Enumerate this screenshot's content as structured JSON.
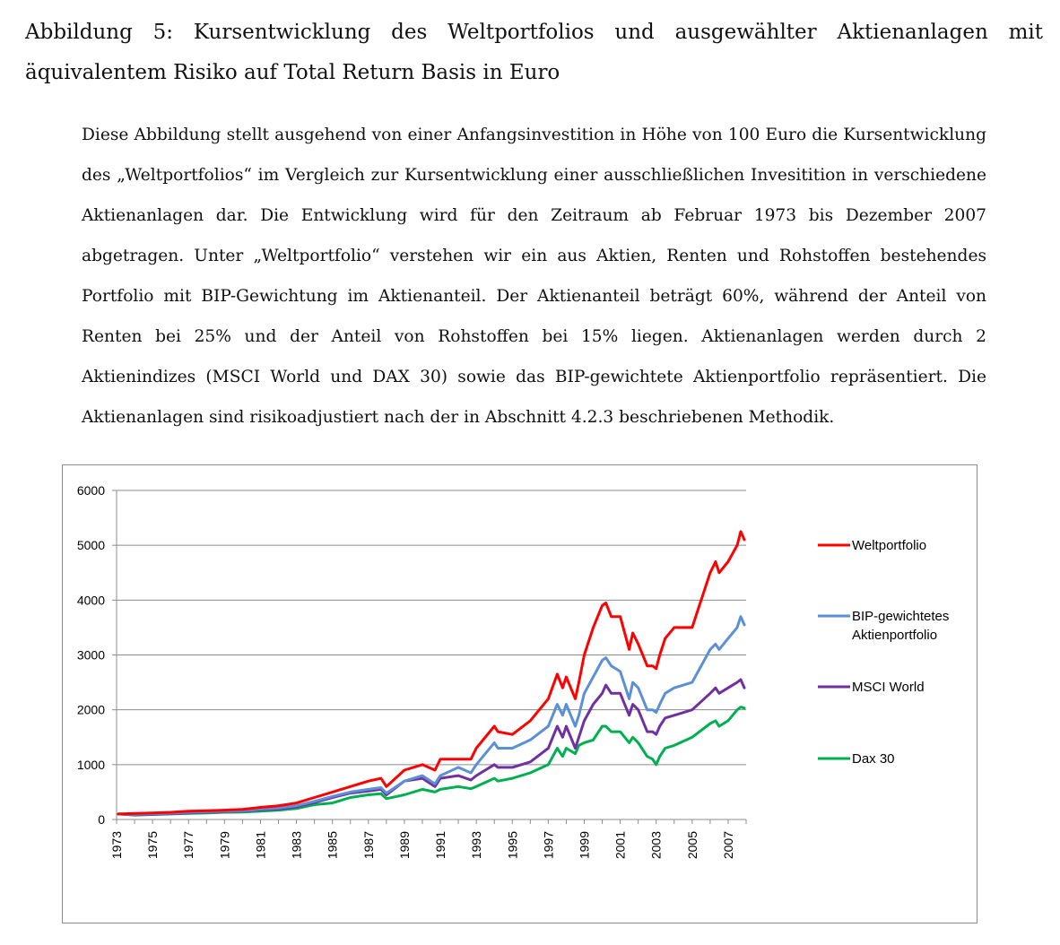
{
  "figure": {
    "caption": "Abbildung 5: Kursentwicklung des Weltportfolios und ausgewählter Aktienanlagen mit äquivalentem Risiko auf Total Return Basis in Euro",
    "description": "Diese Abbildung stellt ausgehend von einer Anfangsinvestition in Höhe von 100 Euro die Kursentwicklung des „Weltportfolios“ im Vergleich zur Kursentwicklung einer ausschließlichen Invesitition in verschiedene Aktienanlagen dar. Die Entwicklung wird für den Zeitraum ab Februar 1973 bis Dezember 2007 abgetragen. Unter „Weltportfolio“ verstehen wir ein aus Aktien, Renten und Rohstoffen bestehendes Portfolio mit BIP-Gewichtung im Aktienanteil. Der Aktienanteil beträgt 60%, während der Anteil von Renten bei 25% und der Anteil von Rohstoffen bei 15% liegen. Aktienanlagen werden durch 2 Aktienindizes (MSCI World und DAX 30) sowie das BIP-gewichtete Aktienportfolio repräsentiert. Die Aktienanlagen sind risikoadjustiert nach der in Abschnitt 4.2.3 beschriebenen Methodik."
  },
  "chart_data": {
    "type": "line",
    "title": "",
    "xlabel": "",
    "ylabel": "",
    "xlim": [
      1973.0,
      2008.0
    ],
    "ylim": [
      0,
      6000
    ],
    "yticks": [
      0,
      1000,
      2000,
      3000,
      4000,
      5000,
      6000
    ],
    "ytick_labels": [
      "0",
      "1000",
      "2000",
      "3000",
      "4000",
      "5000",
      "6000"
    ],
    "xticks": [
      1973,
      1975,
      1977,
      1979,
      1981,
      1983,
      1985,
      1987,
      1989,
      1991,
      1993,
      1995,
      1997,
      1999,
      2001,
      2003,
      2005,
      2007
    ],
    "xtick_labels": [
      "1973",
      "1975",
      "1977",
      "1979",
      "1981",
      "1983",
      "1985",
      "1987",
      "1989",
      "1991",
      "1993",
      "1995",
      "1997",
      "1999",
      "2001",
      "2003",
      "2005",
      "2007"
    ],
    "grid": true,
    "legend_position": "right",
    "x": [
      1973.1,
      1974.0,
      1975.0,
      1976.0,
      1977.0,
      1978.0,
      1979.0,
      1980.0,
      1981.0,
      1982.0,
      1983.0,
      1984.0,
      1985.0,
      1986.0,
      1987.0,
      1987.7,
      1988.0,
      1989.0,
      1990.0,
      1990.7,
      1991.0,
      1992.0,
      1992.7,
      1993.0,
      1994.0,
      1994.2,
      1995.0,
      1996.0,
      1997.0,
      1997.5,
      1997.8,
      1998.0,
      1998.5,
      1998.7,
      1999.0,
      1999.5,
      2000.0,
      2000.2,
      2000.5,
      2001.0,
      2001.5,
      2001.7,
      2002.0,
      2002.5,
      2002.8,
      2003.0,
      2003.2,
      2003.5,
      2004.0,
      2005.0,
      2006.0,
      2006.3,
      2006.5,
      2007.0,
      2007.5,
      2007.7,
      2007.9
    ],
    "series": [
      {
        "name": "Weltportfolio",
        "color": "#ff0000",
        "values": [
          100,
          110,
          120,
          130,
          150,
          160,
          170,
          185,
          220,
          250,
          300,
          400,
          500,
          600,
          700,
          750,
          600,
          900,
          1000,
          900,
          1100,
          1100,
          1100,
          1300,
          1700,
          1600,
          1550,
          1800,
          2200,
          2650,
          2400,
          2600,
          2200,
          2500,
          3000,
          3500,
          3900,
          3950,
          3700,
          3700,
          3100,
          3400,
          3200,
          2800,
          2800,
          2750,
          3000,
          3300,
          3500,
          3500,
          4500,
          4700,
          4500,
          4700,
          5000,
          5250,
          5100
        ]
      },
      {
        "name": "BIP-gewichtetes Aktienportfolio",
        "color": "#5b8fd6",
        "values": [
          100,
          95,
          105,
          115,
          130,
          140,
          150,
          160,
          190,
          210,
          250,
          330,
          420,
          500,
          550,
          580,
          480,
          700,
          800,
          650,
          800,
          950,
          850,
          1000,
          1400,
          1300,
          1300,
          1450,
          1700,
          2100,
          1900,
          2100,
          1700,
          1900,
          2300,
          2600,
          2900,
          2950,
          2800,
          2700,
          2200,
          2500,
          2400,
          2000,
          2000,
          1950,
          2100,
          2300,
          2400,
          2500,
          3100,
          3200,
          3100,
          3300,
          3500,
          3700,
          3550
        ]
      },
      {
        "name": "MSCI World",
        "color": "#7030a0",
        "values": [
          100,
          85,
          95,
          105,
          120,
          130,
          140,
          150,
          175,
          190,
          230,
          310,
          400,
          480,
          520,
          550,
          450,
          700,
          750,
          600,
          750,
          800,
          720,
          800,
          1000,
          950,
          950,
          1050,
          1300,
          1700,
          1500,
          1700,
          1300,
          1500,
          1800,
          2100,
          2300,
          2450,
          2300,
          2300,
          1900,
          2100,
          2000,
          1600,
          1600,
          1550,
          1700,
          1850,
          1900,
          2000,
          2300,
          2400,
          2300,
          2400,
          2500,
          2550,
          2400
        ]
      },
      {
        "name": "Dax 30",
        "color": "#00b050",
        "values": [
          100,
          80,
          90,
          100,
          110,
          120,
          130,
          135,
          150,
          170,
          200,
          270,
          300,
          400,
          450,
          470,
          380,
          450,
          550,
          500,
          550,
          600,
          560,
          600,
          750,
          700,
          750,
          850,
          1000,
          1300,
          1150,
          1300,
          1200,
          1350,
          1400,
          1450,
          1700,
          1700,
          1600,
          1600,
          1400,
          1500,
          1400,
          1150,
          1100,
          1000,
          1150,
          1300,
          1350,
          1500,
          1750,
          1800,
          1700,
          1800,
          2000,
          2050,
          2030
        ]
      }
    ]
  }
}
